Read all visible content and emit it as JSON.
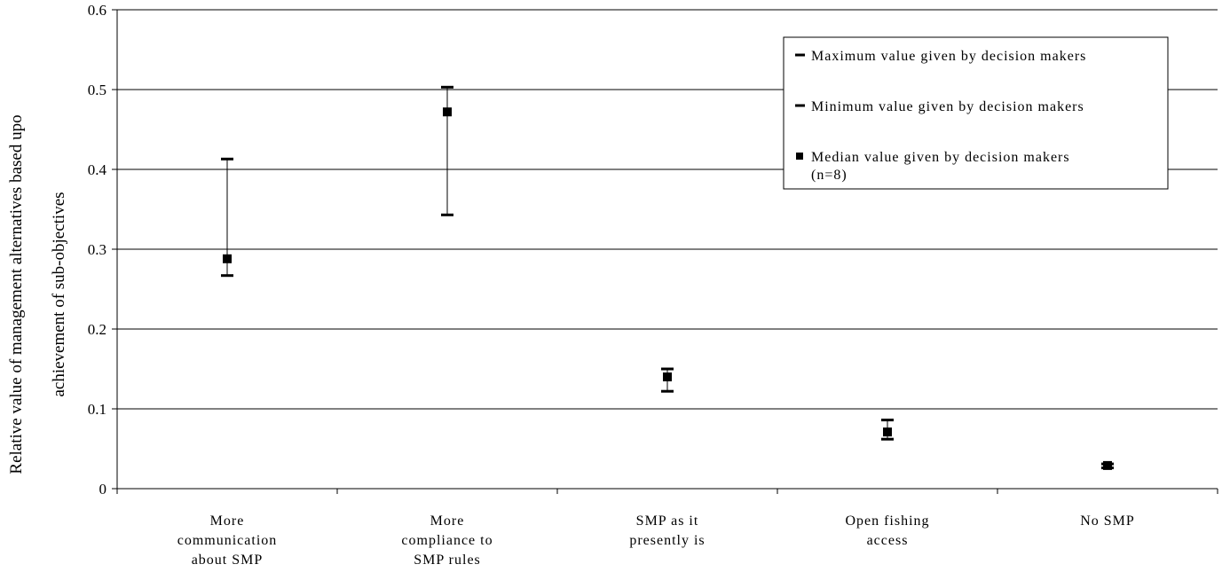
{
  "chart_data": {
    "type": "scatter",
    "title": "",
    "ylabel_lines": [
      "Relative value of management alternatives based upo",
      "achievement of sub-objectives"
    ],
    "xlabel": "",
    "ylim": [
      0,
      0.6
    ],
    "yticks": [
      "0",
      "0.1",
      "0.2",
      "0.3",
      "0.4",
      "0.5",
      "0.6"
    ],
    "grid": true,
    "categories": [
      [
        "More",
        "communication",
        "about SMP"
      ],
      [
        "More",
        "compliance to",
        "SMP rules"
      ],
      [
        "SMP as it",
        "presently is"
      ],
      [
        "Open fishing",
        "access"
      ],
      [
        "No SMP"
      ]
    ],
    "series": [
      {
        "name": "Maximum value given by decision makers",
        "values": [
          0.413,
          0.503,
          0.15,
          0.086,
          0.031
        ]
      },
      {
        "name": "Minimum value given by decision makers",
        "values": [
          0.267,
          0.343,
          0.122,
          0.062,
          0.026
        ]
      },
      {
        "name": "Median value given by decision makers (n=8)",
        "values": [
          0.288,
          0.472,
          0.14,
          0.071,
          0.029
        ]
      }
    ],
    "legend": {
      "position": "top-right",
      "entries": [
        [
          "Maximum value given by decision makers"
        ],
        [
          "Minimum value given by decision makers"
        ],
        [
          "Median value given by decision makers",
          "(n=8)"
        ]
      ]
    },
    "colors": {
      "marker": "#000000",
      "grid": "#000000",
      "background": "#ffffff"
    }
  }
}
